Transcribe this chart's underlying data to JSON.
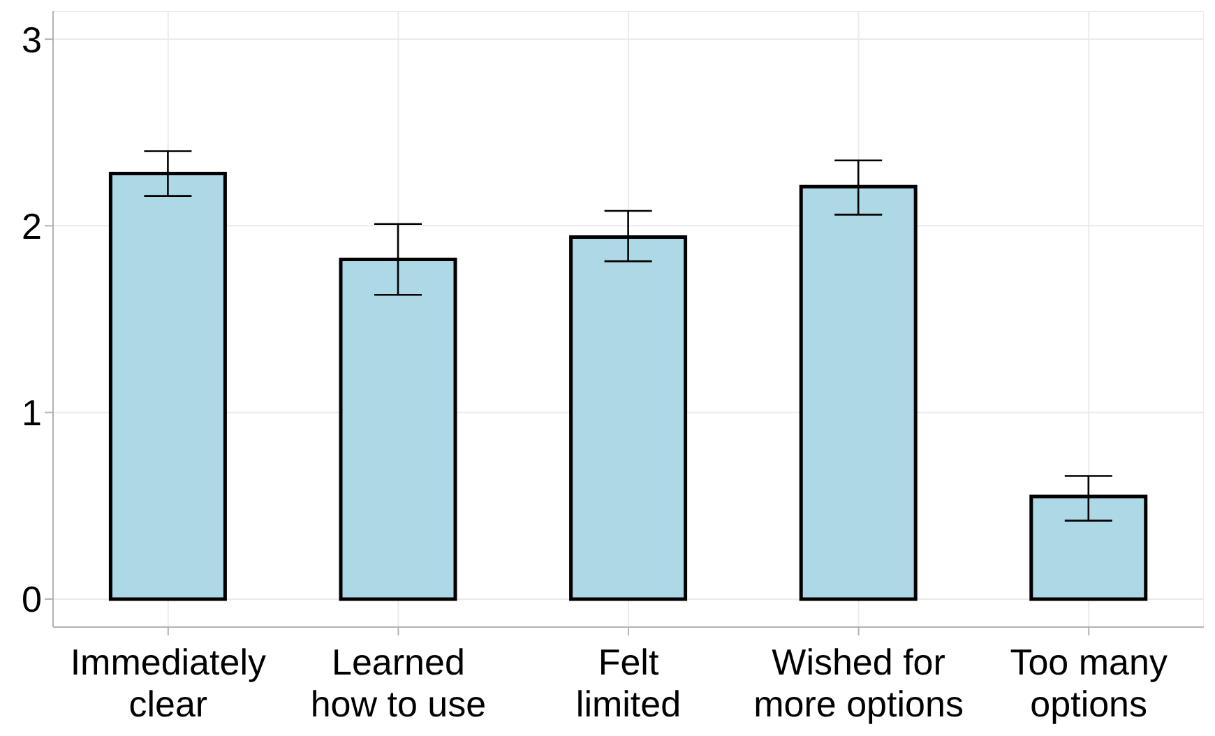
{
  "chart_data": {
    "type": "bar",
    "categories": [
      "Immediately\nclear",
      "Learned\nhow to use",
      "Felt\nlimited",
      "Wished for\nmore options",
      "Too many\noptions"
    ],
    "values": [
      2.28,
      1.82,
      1.94,
      2.21,
      0.55
    ],
    "errors": [
      [
        2.16,
        2.4
      ],
      [
        1.63,
        2.01
      ],
      [
        1.81,
        2.08
      ],
      [
        2.06,
        2.35
      ],
      [
        0.42,
        0.66
      ]
    ],
    "color": "#add8e6",
    "ylim": [
      -0.15,
      3.15
    ],
    "yticks": [
      0,
      1,
      2,
      3
    ],
    "grid": true
  }
}
